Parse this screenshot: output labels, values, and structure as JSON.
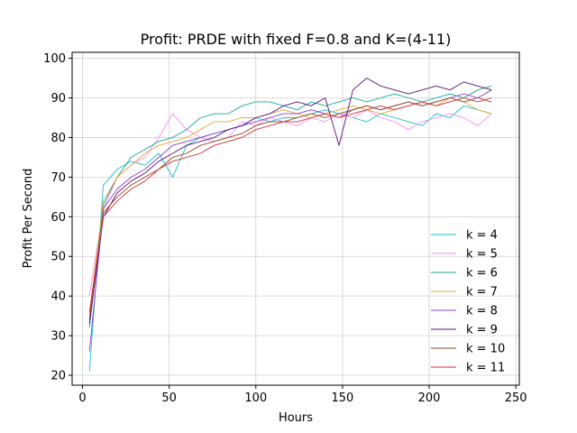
{
  "chart_data": {
    "type": "line",
    "title": "Profit: PRDE with fixed F=0.8 and K=(4-11)",
    "xlabel": "Hours",
    "ylabel": "Profit Per Second",
    "xlim": [
      -6,
      252
    ],
    "ylim": [
      17.5,
      101.5
    ],
    "xticks": [
      0,
      50,
      100,
      150,
      200,
      250
    ],
    "yticks": [
      20,
      30,
      40,
      50,
      60,
      70,
      80,
      90,
      100
    ],
    "grid": true,
    "legend_position": "lower-right",
    "x": [
      4,
      12,
      20,
      28,
      36,
      44,
      52,
      60,
      68,
      76,
      84,
      92,
      100,
      108,
      116,
      124,
      132,
      140,
      148,
      156,
      164,
      172,
      180,
      188,
      196,
      204,
      212,
      220,
      228,
      236
    ],
    "series": [
      {
        "name": "k = 4",
        "color": "#17becf",
        "values": [
          21,
          68,
          72,
          74,
          73,
          76,
          70,
          78,
          80,
          81,
          82,
          83,
          85,
          84,
          85,
          85,
          86,
          87,
          86,
          85,
          84,
          86,
          85,
          84,
          83,
          86,
          85,
          88,
          87,
          86
        ]
      },
      {
        "name": "k = 5",
        "color": "#f58ff0",
        "values": [
          40,
          62,
          70,
          73,
          75,
          80,
          86,
          82,
          80,
          79,
          80,
          84,
          83,
          85,
          84,
          83,
          85,
          84,
          86,
          85,
          87,
          85,
          84,
          82,
          84,
          85,
          86,
          85,
          83,
          86
        ]
      },
      {
        "name": "k = 6",
        "color": "#17a69a",
        "values": [
          32,
          63,
          70,
          75,
          77,
          79,
          80,
          82,
          85,
          86,
          86,
          88,
          89,
          89,
          88,
          87,
          89,
          88,
          89,
          90,
          89,
          90,
          91,
          90,
          89,
          90,
          91,
          90,
          92,
          93
        ]
      },
      {
        "name": "k = 7",
        "color": "#e8a838",
        "values": [
          35,
          64,
          70,
          73,
          76,
          78,
          79,
          80,
          82,
          84,
          84,
          85,
          85,
          86,
          87,
          86,
          85,
          86,
          87,
          88,
          87,
          86,
          87,
          88,
          89,
          88,
          90,
          89,
          87,
          86
        ]
      },
      {
        "name": "k = 8",
        "color": "#8b3fc8",
        "values": [
          26,
          62,
          67,
          70,
          72,
          75,
          78,
          79,
          80,
          81,
          82,
          83,
          84,
          85,
          86,
          86,
          87,
          86,
          85,
          87,
          88,
          87,
          88,
          89,
          88,
          89,
          90,
          91,
          90,
          92
        ]
      },
      {
        "name": "k = 9",
        "color": "#5e0f80",
        "values": [
          33,
          60,
          66,
          69,
          71,
          74,
          76,
          78,
          79,
          80,
          82,
          83,
          85,
          86,
          88,
          89,
          88,
          90,
          78,
          92,
          95,
          93,
          92,
          91,
          92,
          93,
          92,
          94,
          93,
          92
        ]
      },
      {
        "name": "k = 10",
        "color": "#8c4a1c",
        "values": [
          34,
          61,
          65,
          68,
          70,
          72,
          75,
          76,
          78,
          79,
          80,
          81,
          83,
          84,
          84,
          85,
          86,
          85,
          86,
          87,
          88,
          87,
          88,
          89,
          88,
          89,
          90,
          89,
          90,
          89
        ]
      },
      {
        "name": "k = 11",
        "color": "#d62c3c",
        "values": [
          36,
          60,
          64,
          67,
          69,
          72,
          74,
          75,
          76,
          78,
          79,
          80,
          82,
          83,
          84,
          84,
          85,
          86,
          85,
          86,
          87,
          88,
          87,
          88,
          89,
          88,
          89,
          90,
          89,
          90
        ]
      }
    ]
  }
}
